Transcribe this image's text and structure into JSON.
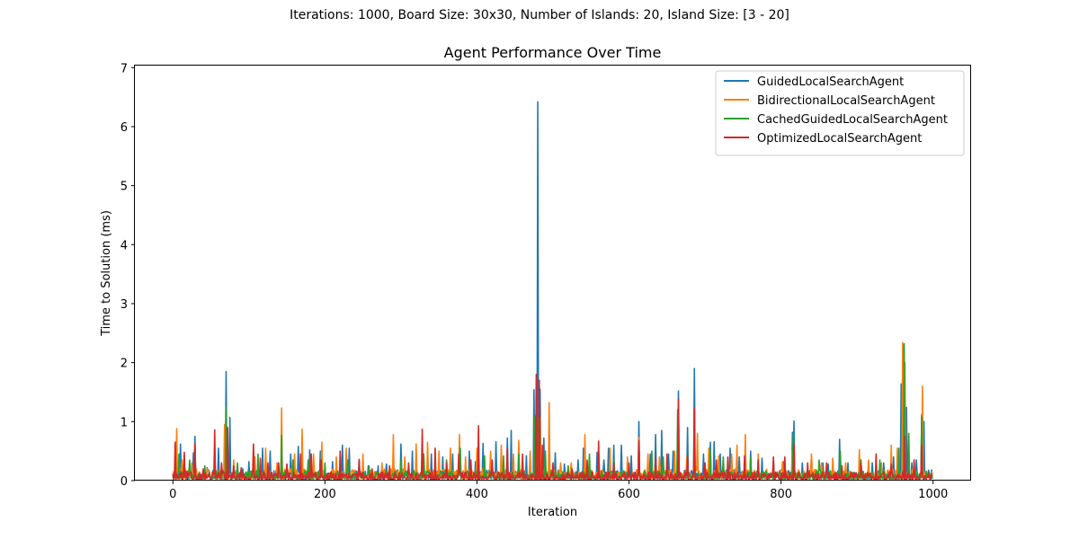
{
  "suptitle": "Iterations: 1000, Board Size: 30x30, Number of Islands: 20, Island Size: [3 - 20]",
  "chart_data": {
    "type": "line",
    "title": "Agent Performance Over Time",
    "xlabel": "Iteration",
    "ylabel": "Time to Solution (ms)",
    "xlim": [
      -50,
      1050
    ],
    "ylim": [
      0,
      7.05
    ],
    "xticks": [
      0,
      200,
      400,
      600,
      800,
      1000
    ],
    "yticks": [
      0,
      1,
      2,
      3,
      4,
      5,
      6,
      7
    ],
    "xtick_labels": [
      "0",
      "200",
      "400",
      "600",
      "800",
      "1000"
    ],
    "ytick_labels": [
      "0",
      "1",
      "2",
      "3",
      "4",
      "5",
      "6",
      "7"
    ],
    "grid": false,
    "legend_position": "top-right",
    "x_range": [
      0,
      999
    ],
    "series": [
      {
        "name": "GuidedLocalSearchAgent",
        "color": "#1f77b4",
        "baseline": [
          0.03,
          0.18
        ],
        "peaks": [
          [
            4,
            0.4
          ],
          [
            10,
            0.62
          ],
          [
            15,
            0.3
          ],
          [
            27,
            0.47
          ],
          [
            29,
            0.75
          ],
          [
            45,
            0.22
          ],
          [
            60,
            0.55
          ],
          [
            70,
            1.85
          ],
          [
            75,
            1.07
          ],
          [
            92,
            0.2
          ],
          [
            100,
            0.32
          ],
          [
            107,
            0.35
          ],
          [
            118,
            0.55
          ],
          [
            128,
            0.5
          ],
          [
            143,
            0.5
          ],
          [
            155,
            0.45
          ],
          [
            165,
            0.58
          ],
          [
            180,
            0.52
          ],
          [
            194,
            0.5
          ],
          [
            210,
            0.32
          ],
          [
            223,
            0.6
          ],
          [
            232,
            0.55
          ],
          [
            245,
            0.36
          ],
          [
            257,
            0.25
          ],
          [
            270,
            0.25
          ],
          [
            281,
            0.28
          ],
          [
            300,
            0.62
          ],
          [
            315,
            0.5
          ],
          [
            328,
            0.55
          ],
          [
            340,
            0.45
          ],
          [
            355,
            0.4
          ],
          [
            368,
            0.45
          ],
          [
            378,
            0.52
          ],
          [
            390,
            0.5
          ],
          [
            398,
            0.32
          ],
          [
            408,
            0.63
          ],
          [
            420,
            0.28
          ],
          [
            425,
            0.66
          ],
          [
            440,
            0.72
          ],
          [
            445,
            0.85
          ],
          [
            455,
            0.35
          ],
          [
            465,
            0.42
          ],
          [
            475,
            1.54
          ],
          [
            478,
            0.6
          ],
          [
            480,
            6.42
          ],
          [
            483,
            1.55
          ],
          [
            488,
            0.72
          ],
          [
            503,
            0.47
          ],
          [
            515,
            0.28
          ],
          [
            533,
            0.35
          ],
          [
            540,
            0.55
          ],
          [
            558,
            0.48
          ],
          [
            567,
            0.35
          ],
          [
            573,
            0.55
          ],
          [
            580,
            0.6
          ],
          [
            590,
            0.6
          ],
          [
            603,
            0.42
          ],
          [
            613,
            1.0
          ],
          [
            628,
            0.45
          ],
          [
            635,
            0.78
          ],
          [
            643,
            0.85
          ],
          [
            652,
            0.45
          ],
          [
            658,
            0.5
          ],
          [
            665,
            1.52
          ],
          [
            677,
            0.9
          ],
          [
            686,
            1.9
          ],
          [
            698,
            0.45
          ],
          [
            707,
            0.65
          ],
          [
            712,
            0.66
          ],
          [
            720,
            0.45
          ],
          [
            733,
            0.55
          ],
          [
            745,
            0.4
          ],
          [
            760,
            0.5
          ],
          [
            775,
            0.38
          ],
          [
            790,
            0.3
          ],
          [
            803,
            0.32
          ],
          [
            815,
            0.82
          ],
          [
            817,
            1.01
          ],
          [
            828,
            0.3
          ],
          [
            840,
            0.4
          ],
          [
            855,
            0.3
          ],
          [
            862,
            0.28
          ],
          [
            877,
            0.7
          ],
          [
            888,
            0.3
          ],
          [
            905,
            0.35
          ],
          [
            920,
            0.3
          ],
          [
            935,
            0.3
          ],
          [
            948,
            0.4
          ],
          [
            958,
            1.64
          ],
          [
            961,
            2.3
          ],
          [
            965,
            1.24
          ],
          [
            972,
            0.3
          ],
          [
            978,
            0.35
          ],
          [
            985,
            1.12
          ],
          [
            988,
            1.0
          ],
          [
            998,
            0.18
          ]
        ]
      },
      {
        "name": "BidirectionalLocalSearchAgent",
        "color": "#ff7f0e",
        "baseline": [
          0.04,
          0.2
        ],
        "peaks": [
          [
            5,
            0.88
          ],
          [
            12,
            0.35
          ],
          [
            25,
            0.3
          ],
          [
            45,
            0.2
          ],
          [
            68,
            0.95
          ],
          [
            80,
            0.35
          ],
          [
            108,
            0.4
          ],
          [
            122,
            0.55
          ],
          [
            137,
            0.3
          ],
          [
            143,
            1.23
          ],
          [
            160,
            0.45
          ],
          [
            170,
            0.87
          ],
          [
            185,
            0.45
          ],
          [
            196,
            0.65
          ],
          [
            215,
            0.4
          ],
          [
            228,
            0.55
          ],
          [
            250,
            0.45
          ],
          [
            275,
            0.3
          ],
          [
            290,
            0.78
          ],
          [
            305,
            0.4
          ],
          [
            320,
            0.62
          ],
          [
            335,
            0.65
          ],
          [
            350,
            0.5
          ],
          [
            365,
            0.55
          ],
          [
            377,
            0.78
          ],
          [
            385,
            0.4
          ],
          [
            400,
            0.55
          ],
          [
            418,
            0.5
          ],
          [
            432,
            0.6
          ],
          [
            448,
            0.45
          ],
          [
            455,
            0.68
          ],
          [
            470,
            0.5
          ],
          [
            478,
            1.18
          ],
          [
            483,
            1.07
          ],
          [
            495,
            1.32
          ],
          [
            510,
            0.3
          ],
          [
            524,
            0.3
          ],
          [
            542,
            0.78
          ],
          [
            560,
            0.5
          ],
          [
            575,
            0.55
          ],
          [
            598,
            0.4
          ],
          [
            613,
            0.73
          ],
          [
            625,
            0.45
          ],
          [
            640,
            0.4
          ],
          [
            660,
            0.5
          ],
          [
            676,
            0.4
          ],
          [
            690,
            0.8
          ],
          [
            705,
            0.55
          ],
          [
            718,
            0.42
          ],
          [
            735,
            0.45
          ],
          [
            742,
            0.6
          ],
          [
            753,
            0.78
          ],
          [
            770,
            0.45
          ],
          [
            790,
            0.35
          ],
          [
            802,
            0.32
          ],
          [
            815,
            0.5
          ],
          [
            840,
            0.45
          ],
          [
            853,
            0.3
          ],
          [
            868,
            0.38
          ],
          [
            885,
            0.3
          ],
          [
            903,
            0.52
          ],
          [
            915,
            0.35
          ],
          [
            932,
            0.3
          ],
          [
            945,
            0.6
          ],
          [
            953,
            0.55
          ],
          [
            960,
            2.34
          ],
          [
            963,
            2.0
          ],
          [
            975,
            0.35
          ],
          [
            986,
            1.6
          ],
          [
            998,
            0.15
          ]
        ]
      },
      {
        "name": "CachedGuidedLocalSearchAgent",
        "color": "#2ca02c",
        "baseline": [
          0.03,
          0.17
        ],
        "peaks": [
          [
            8,
            0.45
          ],
          [
            22,
            0.35
          ],
          [
            42,
            0.25
          ],
          [
            70,
            1.25
          ],
          [
            85,
            0.3
          ],
          [
            112,
            0.45
          ],
          [
            143,
            0.77
          ],
          [
            158,
            0.35
          ],
          [
            178,
            0.35
          ],
          [
            200,
            0.3
          ],
          [
            230,
            0.35
          ],
          [
            258,
            0.25
          ],
          [
            300,
            0.35
          ],
          [
            330,
            0.45
          ],
          [
            360,
            0.35
          ],
          [
            378,
            0.55
          ],
          [
            410,
            0.42
          ],
          [
            435,
            0.42
          ],
          [
            455,
            0.45
          ],
          [
            476,
            1.1
          ],
          [
            481,
            1.05
          ],
          [
            490,
            0.5
          ],
          [
            520,
            0.25
          ],
          [
            548,
            0.45
          ],
          [
            580,
            0.35
          ],
          [
            613,
            0.65
          ],
          [
            630,
            0.5
          ],
          [
            645,
            0.4
          ],
          [
            664,
            1.2
          ],
          [
            686,
            0.55
          ],
          [
            707,
            0.52
          ],
          [
            724,
            0.4
          ],
          [
            760,
            0.4
          ],
          [
            790,
            0.32
          ],
          [
            816,
            0.78
          ],
          [
            850,
            0.35
          ],
          [
            878,
            0.5
          ],
          [
            905,
            0.35
          ],
          [
            930,
            0.35
          ],
          [
            955,
            0.55
          ],
          [
            962,
            2.32
          ],
          [
            968,
            0.8
          ],
          [
            985,
            1.08
          ],
          [
            998,
            0.12
          ]
        ]
      },
      {
        "name": "OptimizedLocalSearchAgent",
        "color": "#d62728",
        "baseline": [
          0.02,
          0.15
        ],
        "peaks": [
          [
            3,
            0.65
          ],
          [
            15,
            0.48
          ],
          [
            29,
            0.62
          ],
          [
            40,
            0.2
          ],
          [
            55,
            0.86
          ],
          [
            64,
            0.3
          ],
          [
            72,
            0.9
          ],
          [
            80,
            0.25
          ],
          [
            90,
            0.22
          ],
          [
            106,
            0.62
          ],
          [
            115,
            0.38
          ],
          [
            125,
            0.3
          ],
          [
            139,
            0.3
          ],
          [
            150,
            0.28
          ],
          [
            168,
            0.45
          ],
          [
            182,
            0.45
          ],
          [
            195,
            0.35
          ],
          [
            220,
            0.5
          ],
          [
            245,
            0.35
          ],
          [
            262,
            0.2
          ],
          [
            285,
            0.25
          ],
          [
            310,
            0.3
          ],
          [
            328,
            0.87
          ],
          [
            345,
            0.55
          ],
          [
            360,
            0.3
          ],
          [
            376,
            0.45
          ],
          [
            392,
            0.35
          ],
          [
            402,
            0.93
          ],
          [
            420,
            0.35
          ],
          [
            440,
            0.55
          ],
          [
            460,
            0.45
          ],
          [
            478,
            1.8
          ],
          [
            482,
            1.7
          ],
          [
            486,
            0.6
          ],
          [
            500,
            0.3
          ],
          [
            525,
            0.2
          ],
          [
            545,
            0.35
          ],
          [
            560,
            0.67
          ],
          [
            580,
            0.3
          ],
          [
            600,
            0.3
          ],
          [
            613,
            0.68
          ],
          [
            635,
            0.4
          ],
          [
            650,
            0.45
          ],
          [
            665,
            1.38
          ],
          [
            677,
            0.4
          ],
          [
            686,
            1.22
          ],
          [
            700,
            0.3
          ],
          [
            715,
            0.35
          ],
          [
            730,
            0.4
          ],
          [
            752,
            0.42
          ],
          [
            770,
            0.35
          ],
          [
            790,
            0.4
          ],
          [
            805,
            0.4
          ],
          [
            817,
            0.62
          ],
          [
            835,
            0.3
          ],
          [
            860,
            0.3
          ],
          [
            880,
            0.25
          ],
          [
            905,
            0.3
          ],
          [
            925,
            0.45
          ],
          [
            945,
            0.28
          ],
          [
            963,
            0.75
          ],
          [
            975,
            0.35
          ],
          [
            985,
            0.6
          ],
          [
            998,
            0.1
          ]
        ]
      }
    ]
  }
}
